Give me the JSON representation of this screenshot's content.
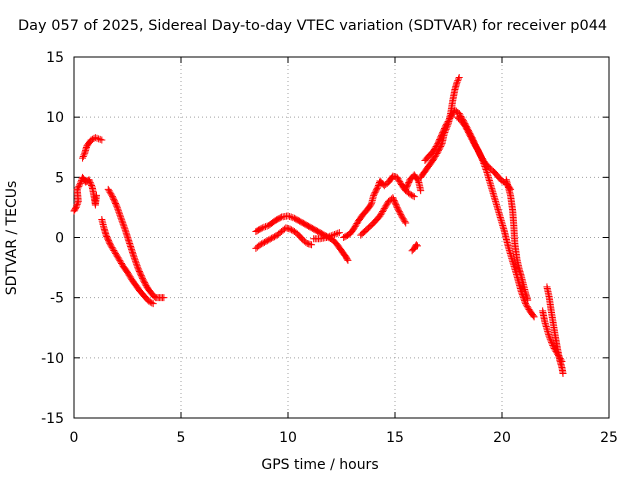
{
  "chart_data": {
    "type": "scatter",
    "title": "Day 057 of 2025, Sidereal Day-to-day VTEC variation (SDTVAR) for receiver p044",
    "xlabel": "GPS time / hours",
    "ylabel": "SDTVAR / TECUs",
    "xlim": [
      0,
      25
    ],
    "ylim": [
      -15,
      15
    ],
    "xticks": [
      0,
      5,
      10,
      15,
      20,
      25
    ],
    "yticks": [
      -15,
      -10,
      -5,
      0,
      5,
      10,
      15
    ],
    "grid": true,
    "marker": "+",
    "color": "#ff0000",
    "series": [
      {
        "name": "SDTVAR",
        "segments": [
          [
            [
              0.0,
              2.2
            ],
            [
              0.1,
              2.5
            ],
            [
              0.2,
              3.0
            ],
            [
              0.15,
              4.0
            ],
            [
              0.3,
              4.5
            ],
            [
              0.4,
              5.0
            ],
            [
              0.55,
              4.6
            ],
            [
              0.7,
              4.8
            ],
            [
              0.85,
              4.2
            ],
            [
              0.95,
              3.3
            ],
            [
              1.0,
              2.7
            ],
            [
              1.05,
              3.5
            ]
          ],
          [
            [
              0.4,
              6.6
            ],
            [
              0.5,
              7.0
            ],
            [
              0.6,
              7.6
            ],
            [
              0.8,
              8.1
            ],
            [
              1.0,
              8.3
            ],
            [
              1.3,
              8.1
            ]
          ],
          [
            [
              1.3,
              1.5
            ],
            [
              1.4,
              0.8
            ],
            [
              1.5,
              0.2
            ],
            [
              1.7,
              -0.6
            ],
            [
              1.9,
              -1.2
            ],
            [
              2.1,
              -1.8
            ],
            [
              2.3,
              -2.4
            ],
            [
              2.5,
              -2.9
            ],
            [
              2.7,
              -3.5
            ],
            [
              2.9,
              -4.0
            ],
            [
              3.1,
              -4.5
            ],
            [
              3.3,
              -4.9
            ],
            [
              3.5,
              -5.3
            ],
            [
              3.7,
              -5.5
            ]
          ],
          [
            [
              1.6,
              4.0
            ],
            [
              1.8,
              3.4
            ],
            [
              2.0,
              2.6
            ],
            [
              2.2,
              1.6
            ],
            [
              2.4,
              0.6
            ],
            [
              2.6,
              -0.5
            ],
            [
              2.8,
              -1.6
            ],
            [
              3.0,
              -2.6
            ],
            [
              3.2,
              -3.4
            ],
            [
              3.4,
              -4.1
            ],
            [
              3.6,
              -4.6
            ],
            [
              3.8,
              -5.0
            ],
            [
              4.0,
              -5.0
            ],
            [
              4.2,
              -5.0
            ]
          ],
          [
            [
              8.5,
              -0.9
            ],
            [
              8.7,
              -0.6
            ],
            [
              8.9,
              -0.4
            ],
            [
              9.1,
              -0.2
            ],
            [
              9.3,
              0.0
            ],
            [
              9.5,
              0.2
            ],
            [
              9.7,
              0.5
            ],
            [
              9.9,
              0.8
            ],
            [
              10.1,
              0.7
            ],
            [
              10.3,
              0.5
            ],
            [
              10.5,
              0.2
            ],
            [
              10.7,
              -0.2
            ],
            [
              10.9,
              -0.5
            ],
            [
              11.1,
              -0.6
            ]
          ],
          [
            [
              8.5,
              0.5
            ],
            [
              8.8,
              0.8
            ],
            [
              9.1,
              1.0
            ],
            [
              9.4,
              1.4
            ],
            [
              9.7,
              1.7
            ],
            [
              10.0,
              1.8
            ],
            [
              10.3,
              1.6
            ],
            [
              10.6,
              1.3
            ],
            [
              10.9,
              1.0
            ],
            [
              11.2,
              0.7
            ],
            [
              11.5,
              0.4
            ],
            [
              11.8,
              0.1
            ],
            [
              12.1,
              -0.2
            ],
            [
              12.3,
              -0.6
            ],
            [
              12.5,
              -1.1
            ],
            [
              12.7,
              -1.6
            ],
            [
              12.8,
              -1.9
            ]
          ],
          [
            [
              11.2,
              -0.1
            ],
            [
              11.5,
              -0.1
            ],
            [
              11.8,
              0.0
            ],
            [
              12.1,
              0.2
            ],
            [
              12.4,
              0.4
            ]
          ],
          [
            [
              12.6,
              0.0
            ],
            [
              12.9,
              0.3
            ],
            [
              13.1,
              0.8
            ],
            [
              13.3,
              1.4
            ],
            [
              13.5,
              1.9
            ],
            [
              13.7,
              2.3
            ],
            [
              13.9,
              2.8
            ],
            [
              14.0,
              3.5
            ],
            [
              14.2,
              4.2
            ],
            [
              14.3,
              4.7
            ],
            [
              14.5,
              4.3
            ],
            [
              14.7,
              4.6
            ],
            [
              14.9,
              5.1
            ],
            [
              15.1,
              5.0
            ],
            [
              15.3,
              4.4
            ],
            [
              15.5,
              3.9
            ],
            [
              15.7,
              3.6
            ],
            [
              15.9,
              3.4
            ]
          ],
          [
            [
              13.4,
              0.2
            ],
            [
              13.7,
              0.7
            ],
            [
              14.0,
              1.2
            ],
            [
              14.3,
              1.8
            ],
            [
              14.5,
              2.4
            ],
            [
              14.7,
              3.0
            ],
            [
              14.9,
              3.3
            ],
            [
              15.1,
              2.5
            ],
            [
              15.3,
              1.8
            ],
            [
              15.5,
              1.2
            ]
          ],
          [
            [
              15.5,
              4.0
            ],
            [
              15.7,
              4.8
            ],
            [
              15.9,
              5.2
            ],
            [
              16.1,
              4.7
            ],
            [
              16.2,
              3.9
            ]
          ],
          [
            [
              15.8,
              -1.1
            ],
            [
              15.9,
              -0.9
            ],
            [
              16.0,
              -0.6
            ],
            [
              16.05,
              -0.7
            ]
          ],
          [
            [
              16.2,
              5.0
            ],
            [
              16.4,
              5.5
            ],
            [
              16.6,
              6.0
            ],
            [
              16.8,
              6.5
            ],
            [
              17.0,
              7.1
            ],
            [
              17.2,
              7.8
            ],
            [
              17.3,
              8.6
            ],
            [
              17.5,
              9.5
            ],
            [
              17.6,
              10.3
            ],
            [
              17.7,
              11.4
            ],
            [
              17.8,
              12.3
            ],
            [
              17.9,
              12.9
            ],
            [
              18.0,
              13.3
            ]
          ],
          [
            [
              16.4,
              6.4
            ],
            [
              16.6,
              6.8
            ],
            [
              16.8,
              7.2
            ],
            [
              17.0,
              7.8
            ],
            [
              17.2,
              8.6
            ],
            [
              17.4,
              9.4
            ],
            [
              17.6,
              10.0
            ],
            [
              17.8,
              10.6
            ],
            [
              18.0,
              10.3
            ],
            [
              18.2,
              9.7
            ],
            [
              18.4,
              9.0
            ],
            [
              18.6,
              8.3
            ],
            [
              18.8,
              7.5
            ],
            [
              19.0,
              6.8
            ],
            [
              19.2,
              6.2
            ],
            [
              19.4,
              5.8
            ],
            [
              19.6,
              5.5
            ],
            [
              19.8,
              5.1
            ],
            [
              20.0,
              4.7
            ],
            [
              20.2,
              4.5
            ],
            [
              20.4,
              4.0
            ]
          ],
          [
            [
              17.9,
              10.0
            ],
            [
              18.1,
              9.7
            ],
            [
              18.3,
              9.2
            ],
            [
              18.5,
              8.5
            ],
            [
              18.7,
              7.8
            ],
            [
              18.9,
              7.2
            ],
            [
              19.1,
              6.4
            ],
            [
              19.3,
              5.4
            ],
            [
              19.5,
              4.2
            ],
            [
              19.7,
              3.0
            ],
            [
              19.9,
              1.8
            ],
            [
              20.1,
              0.6
            ],
            [
              20.3,
              -0.8
            ],
            [
              20.5,
              -2.0
            ],
            [
              20.7,
              -3.2
            ],
            [
              20.9,
              -4.5
            ],
            [
              21.1,
              -5.5
            ],
            [
              21.3,
              -6.1
            ],
            [
              21.5,
              -6.6
            ]
          ],
          [
            [
              20.2,
              4.8
            ],
            [
              20.4,
              3.5
            ],
            [
              20.5,
              2.2
            ],
            [
              20.55,
              1.0
            ],
            [
              20.6,
              -0.5
            ],
            [
              20.7,
              -1.8
            ],
            [
              20.8,
              -2.6
            ],
            [
              20.9,
              -3.2
            ],
            [
              21.0,
              -3.9
            ],
            [
              21.1,
              -4.6
            ],
            [
              21.2,
              -5.2
            ]
          ],
          [
            [
              22.1,
              -4.1
            ],
            [
              22.2,
              -4.9
            ],
            [
              22.3,
              -6.1
            ],
            [
              22.4,
              -7.2
            ],
            [
              22.5,
              -8.3
            ],
            [
              22.6,
              -9.3
            ],
            [
              22.7,
              -10.2
            ],
            [
              22.8,
              -10.8
            ],
            [
              22.85,
              -11.3
            ]
          ],
          [
            [
              21.9,
              -6.1
            ],
            [
              22.0,
              -7.0
            ],
            [
              22.2,
              -8.2
            ],
            [
              22.4,
              -9.1
            ],
            [
              22.6,
              -9.7
            ],
            [
              22.8,
              -10.3
            ]
          ]
        ]
      }
    ]
  }
}
